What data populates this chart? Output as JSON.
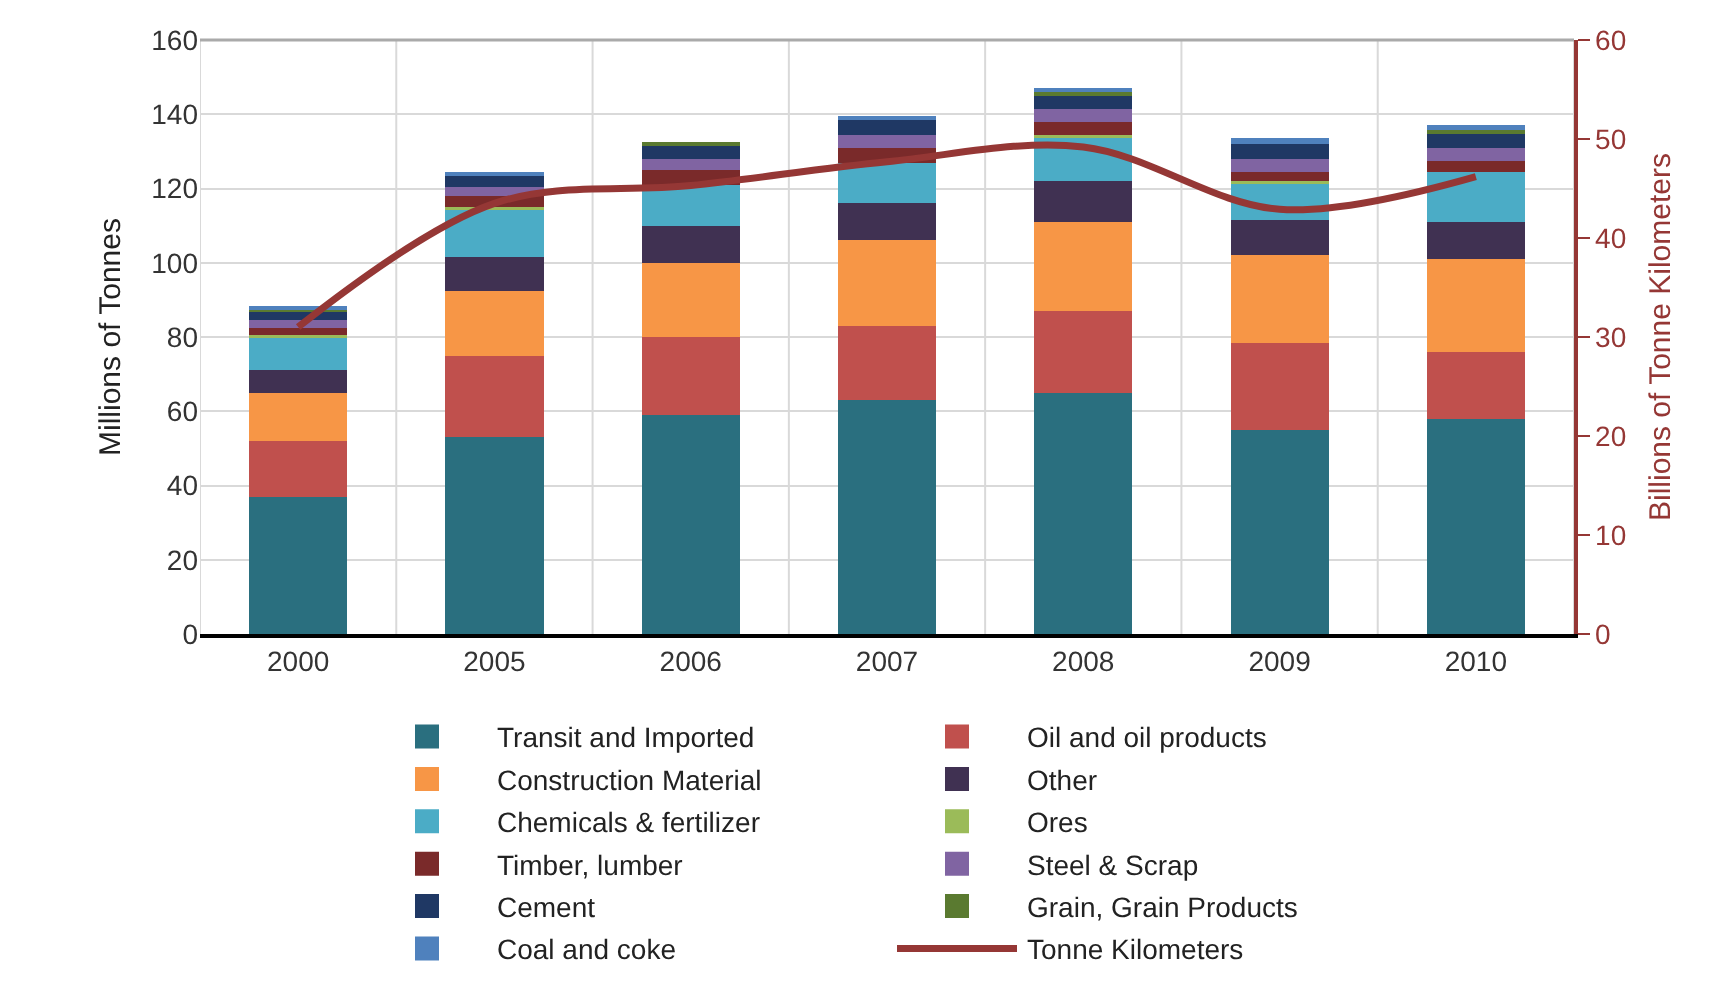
{
  "chart_data": {
    "type": "bar",
    "stacked": true,
    "ylabel": "Millions of Tonnes",
    "y2label": "Billions of Tonne Kilometers",
    "categories": [
      "2000",
      "2005",
      "2006",
      "2007",
      "2008",
      "2009",
      "2010"
    ],
    "ylim": [
      0,
      160
    ],
    "yticks": [
      0,
      20,
      40,
      60,
      80,
      100,
      120,
      140,
      160
    ],
    "y2lim": [
      0,
      60
    ],
    "y2ticks": [
      0,
      10,
      20,
      30,
      40,
      50,
      60
    ],
    "grid": true,
    "legend": "bottom",
    "series": [
      {
        "name": "Transit and Imported",
        "color": "#2a6f7f",
        "values": [
          37,
          53,
          59,
          63,
          65,
          55,
          58
        ]
      },
      {
        "name": "Oil and oil products",
        "color": "#c0504d",
        "values": [
          15,
          22,
          21,
          20,
          22,
          23.5,
          18
        ]
      },
      {
        "name": "Construction Material",
        "color": "#f79646",
        "values": [
          13,
          17.5,
          20,
          23,
          24,
          23.5,
          25
        ]
      },
      {
        "name": "Other",
        "color": "#403152",
        "values": [
          6,
          9,
          10,
          10,
          11,
          9.5,
          10
        ]
      },
      {
        "name": "Chemicals & fertilizer",
        "color": "#4bacc6",
        "values": [
          9,
          13,
          11,
          11,
          12,
          10,
          13.5
        ]
      },
      {
        "name": "Ores",
        "color": "#9bbb59",
        "values": [
          0.5,
          0.5,
          null,
          null,
          0.5,
          0.5,
          null
        ]
      },
      {
        "name": "Timber, lumber",
        "color": "#7a2a2a",
        "values": [
          2,
          3,
          4,
          4,
          3.5,
          2.5,
          3
        ]
      },
      {
        "name": "Steel & Scrap",
        "color": "#8064a2",
        "values": [
          2,
          2.5,
          3,
          3.5,
          3.5,
          3.5,
          3.5
        ]
      },
      {
        "name": "Cement",
        "color": "#1f3864",
        "values": [
          2.5,
          3,
          3.5,
          4,
          3.5,
          4,
          4
        ]
      },
      {
        "name": "Grain, Grain Products",
        "color": "#5a7a30",
        "values": [
          0.5,
          null,
          0.5,
          null,
          1,
          0.5,
          1
        ]
      },
      {
        "name": "Coal and coke",
        "color": "#4f81bd",
        "values": [
          0.5,
          1,
          null,
          1,
          1,
          1,
          1
        ]
      },
      {
        "name": "Tonne Kilometers",
        "type": "line",
        "axis": "y2",
        "color": "#953735",
        "values": [
          31,
          43.5,
          45.3,
          47.7,
          49.2,
          42.9,
          46.2
        ]
      }
    ]
  }
}
